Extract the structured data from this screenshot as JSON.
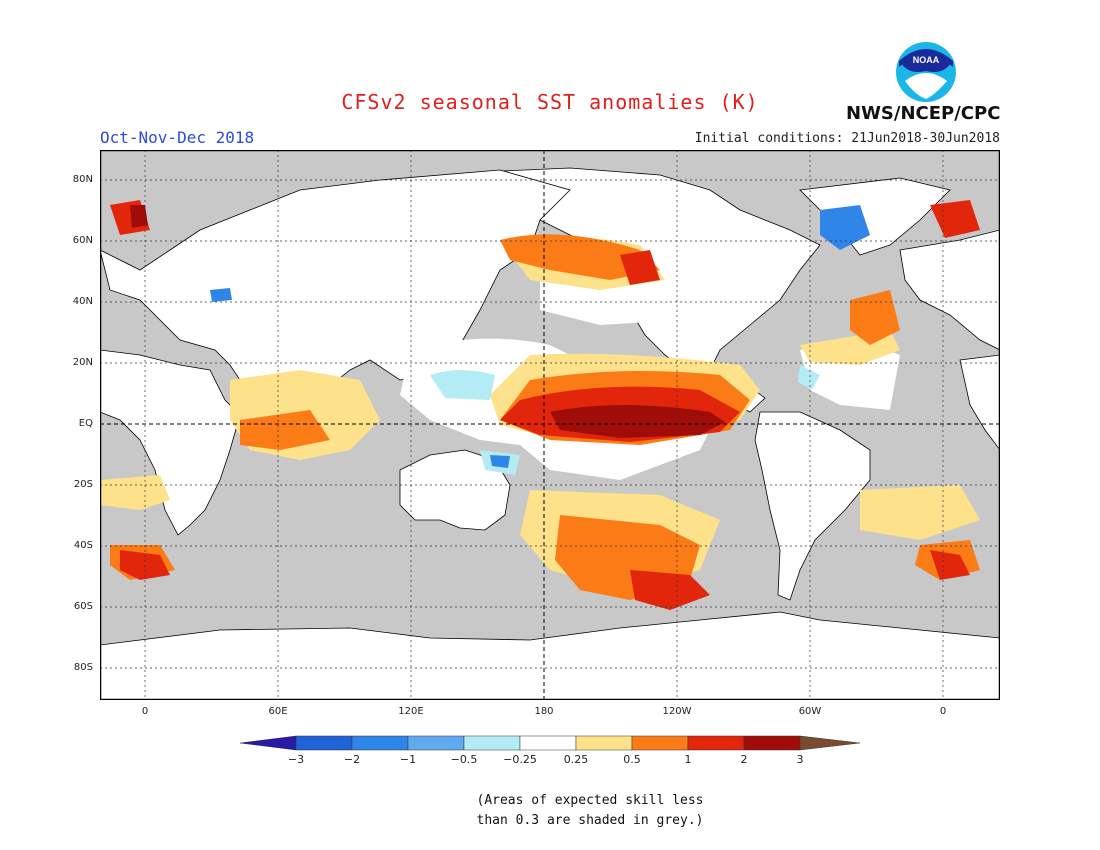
{
  "header": {
    "title": "CFSv2 seasonal SST anomalies (K)",
    "season": "Oct-Nov-Dec 2018",
    "initial_conditions": "Initial conditions: 21Jun2018-30Jun2018",
    "org": "NWS/NCEP/CPC",
    "logo_text": "NOAA"
  },
  "map": {
    "lat_labels": [
      "80N",
      "60N",
      "40N",
      "20N",
      "EQ",
      "20S",
      "40S",
      "60S",
      "80S"
    ],
    "lon_labels": [
      "0",
      "60E",
      "120E",
      "180",
      "120W",
      "60W",
      "0"
    ],
    "colors": {
      "ocean_grey": "#c8c8c8",
      "land": "#ffffff",
      "coast": "#000000"
    }
  },
  "colorbar": {
    "labels": [
      "−3",
      "−2",
      "−1",
      "−0.5",
      "−0.25",
      "0.25",
      "0.5",
      "1",
      "2",
      "3"
    ],
    "colors": [
      "#2a1aa8",
      "#1f63d6",
      "#2f86e8",
      "#62aaf0",
      "#b4ecf6",
      "#ffffff",
      "#fde18b",
      "#fb7b16",
      "#e2260c",
      "#a00c08",
      "#7b4a32"
    ]
  },
  "note": {
    "line1": "(Areas of expected skill less",
    "line2": "than 0.3 are shaded in grey.)"
  }
}
